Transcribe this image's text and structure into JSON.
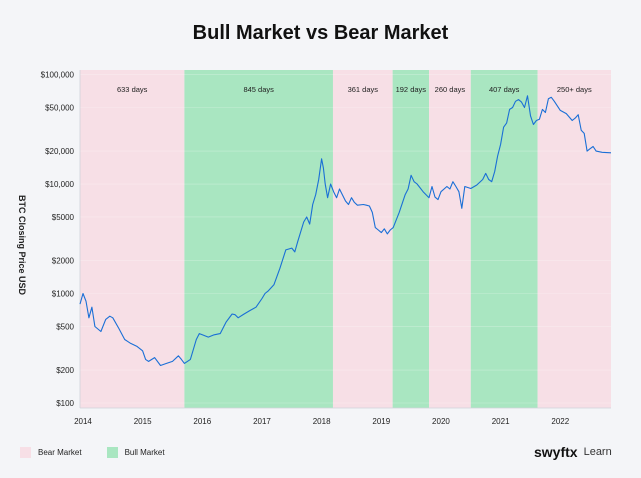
{
  "title": "Bull Market vs Bear Market",
  "legend": [
    {
      "label": "Bear Market",
      "color": "#f7dfe6"
    },
    {
      "label": "Bull Market",
      "color": "#a9e6c1"
    }
  ],
  "brand": {
    "logo": "swyftx",
    "tagline": "Learn"
  },
  "chart_data": {
    "type": "line",
    "ylabel": "BTC Closing Price USD",
    "yscale": "log",
    "ylim": [
      90,
      110000
    ],
    "xlim": [
      2013.95,
      2022.85
    ],
    "x_ticks": [
      "2014",
      "2015",
      "2016",
      "2017",
      "2018",
      "2019",
      "2020",
      "2021",
      "2022"
    ],
    "y_ticks": [
      {
        "v": 100000,
        "label": "$100,000"
      },
      {
        "v": 50000,
        "label": "$50,000"
      },
      {
        "v": 20000,
        "label": "$20,000"
      },
      {
        "v": 10000,
        "label": "$10,000"
      },
      {
        "v": 5000,
        "label": "$5000"
      },
      {
        "v": 2000,
        "label": "$2000"
      },
      {
        "v": 1000,
        "label": "$1000"
      },
      {
        "v": 500,
        "label": "$500"
      },
      {
        "v": 200,
        "label": "$200"
      },
      {
        "v": 100,
        "label": "$100"
      }
    ],
    "periods": [
      {
        "type": "bear",
        "start": 2013.95,
        "end": 2015.7,
        "label": "633 days"
      },
      {
        "type": "bull",
        "start": 2015.7,
        "end": 2018.19,
        "label": "845 days"
      },
      {
        "type": "bear",
        "start": 2018.19,
        "end": 2019.19,
        "label": "361 days"
      },
      {
        "type": "bull",
        "start": 2019.19,
        "end": 2019.8,
        "label": "192 days"
      },
      {
        "type": "bear",
        "start": 2019.8,
        "end": 2020.5,
        "label": "260 days"
      },
      {
        "type": "bull",
        "start": 2020.5,
        "end": 2021.62,
        "label": "407 days"
      },
      {
        "type": "bear",
        "start": 2021.62,
        "end": 2022.85,
        "label": "250+ days"
      }
    ],
    "series": [
      {
        "color": "#1a6fd6",
        "x": [
          2013.95,
          2014.0,
          2014.05,
          2014.1,
          2014.15,
          2014.2,
          2014.3,
          2014.38,
          2014.45,
          2014.5,
          2014.6,
          2014.7,
          2014.8,
          2014.9,
          2015.0,
          2015.05,
          2015.1,
          2015.2,
          2015.3,
          2015.4,
          2015.5,
          2015.6,
          2015.65,
          2015.7,
          2015.8,
          2015.9,
          2015.95,
          2016.0,
          2016.1,
          2016.2,
          2016.3,
          2016.4,
          2016.5,
          2016.55,
          2016.6,
          2016.7,
          2016.8,
          2016.9,
          2017.0,
          2017.05,
          2017.1,
          2017.2,
          2017.3,
          2017.4,
          2017.5,
          2017.55,
          2017.6,
          2017.7,
          2017.75,
          2017.8,
          2017.85,
          2017.9,
          2017.95,
          2018.0,
          2018.03,
          2018.06,
          2018.1,
          2018.15,
          2018.2,
          2018.25,
          2018.3,
          2018.4,
          2018.45,
          2018.5,
          2018.55,
          2018.6,
          2018.7,
          2018.75,
          2018.8,
          2018.85,
          2018.9,
          2018.95,
          2019.0,
          2019.05,
          2019.1,
          2019.15,
          2019.2,
          2019.3,
          2019.4,
          2019.45,
          2019.5,
          2019.55,
          2019.6,
          2019.7,
          2019.8,
          2019.85,
          2019.9,
          2019.95,
          2020.0,
          2020.1,
          2020.15,
          2020.2,
          2020.25,
          2020.3,
          2020.35,
          2020.4,
          2020.5,
          2020.6,
          2020.7,
          2020.75,
          2020.8,
          2020.85,
          2020.9,
          2020.95,
          2021.0,
          2021.05,
          2021.1,
          2021.15,
          2021.2,
          2021.25,
          2021.3,
          2021.35,
          2021.4,
          2021.45,
          2021.5,
          2021.55,
          2021.6,
          2021.65,
          2021.7,
          2021.75,
          2021.8,
          2021.85,
          2021.9,
          2022.0,
          2022.1,
          2022.2,
          2022.25,
          2022.3,
          2022.35,
          2022.4,
          2022.45,
          2022.5,
          2022.55,
          2022.6,
          2022.7,
          2022.85
        ],
        "values": [
          800,
          1000,
          850,
          600,
          750,
          500,
          450,
          580,
          620,
          600,
          480,
          380,
          350,
          330,
          300,
          250,
          240,
          260,
          220,
          230,
          240,
          270,
          250,
          230,
          250,
          380,
          430,
          420,
          400,
          420,
          430,
          550,
          650,
          640,
          600,
          650,
          700,
          750,
          900,
          1000,
          1050,
          1200,
          1700,
          2500,
          2600,
          2400,
          3000,
          4500,
          5000,
          4300,
          6500,
          8000,
          11000,
          17000,
          14000,
          10000,
          7500,
          10000,
          8500,
          7500,
          9000,
          7000,
          6500,
          7500,
          6800,
          6400,
          6500,
          6400,
          6300,
          5500,
          4000,
          3800,
          3600,
          3900,
          3500,
          3800,
          4000,
          5500,
          8000,
          9000,
          12000,
          10500,
          10000,
          8500,
          7500,
          9500,
          7600,
          7200,
          8500,
          9500,
          9000,
          10500,
          9500,
          8500,
          6000,
          9500,
          9100,
          9800,
          11000,
          12500,
          11000,
          10500,
          13000,
          18000,
          23000,
          33000,
          36000,
          48000,
          50000,
          57000,
          59000,
          56000,
          50000,
          64000,
          42000,
          35000,
          38000,
          39000,
          48000,
          45000,
          60000,
          62000,
          57000,
          47000,
          44000,
          38000,
          40000,
          43000,
          31000,
          29000,
          20000,
          21000,
          22000,
          20000,
          19500,
          19300
        ]
      }
    ]
  }
}
